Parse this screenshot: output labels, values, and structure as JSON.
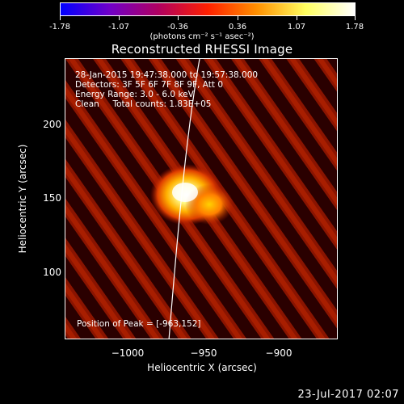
{
  "colorbar": {
    "ticks": [
      "-1.78",
      "-1.07",
      "-0.36",
      "0.36",
      "1.07",
      "1.78"
    ],
    "units_label": "(photons cm⁻² s⁻¹ asec⁻²)",
    "colors": [
      "#0000ff",
      "#7000c8",
      "#b00060",
      "#ff2000",
      "#ff9000",
      "#ffff60",
      "#ffffff"
    ]
  },
  "plot": {
    "title": "Reconstructed RHESSI Image",
    "info_lines": [
      "28-Jan-2015 19:47:38.000 to 19:57:38.000",
      "Detectors: 3F 5F 6F 7F 8F 9F, Att 0",
      "Energy Range: 3.0 - 6.0 keV",
      "Clean     Total counts: 1.83E+05"
    ],
    "peak_label": "Position of Peak = [-963,152]",
    "x_ticks": [
      "−1000",
      "−950",
      "−900"
    ],
    "y_ticks": [
      "200",
      "150",
      "100"
    ],
    "xlabel": "Heliocentric X (arcsec)",
    "ylabel": "Heliocentric Y (arcsec)",
    "limb_color": "#ffffff"
  },
  "footer": {
    "date": "23-Jul-2017 02:07"
  }
}
